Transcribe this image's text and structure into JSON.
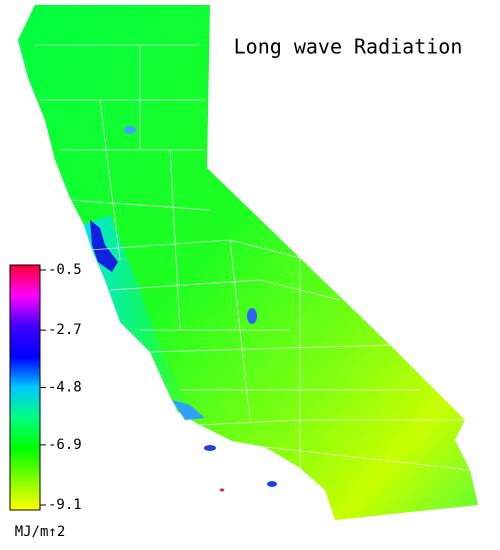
{
  "title": "Long wave Radiation",
  "colorbar": {
    "ticks": [
      -0.5,
      -2.7,
      -4.8,
      -6.9,
      -9.1
    ],
    "unit": "MJ/m↑2",
    "colors": [
      "#ff0033",
      "#ff00ff",
      "#4000ff",
      "#0000ff",
      "#00c8ff",
      "#00ff80",
      "#00ff00",
      "#80ff00",
      "#ffff00"
    ]
  }
}
